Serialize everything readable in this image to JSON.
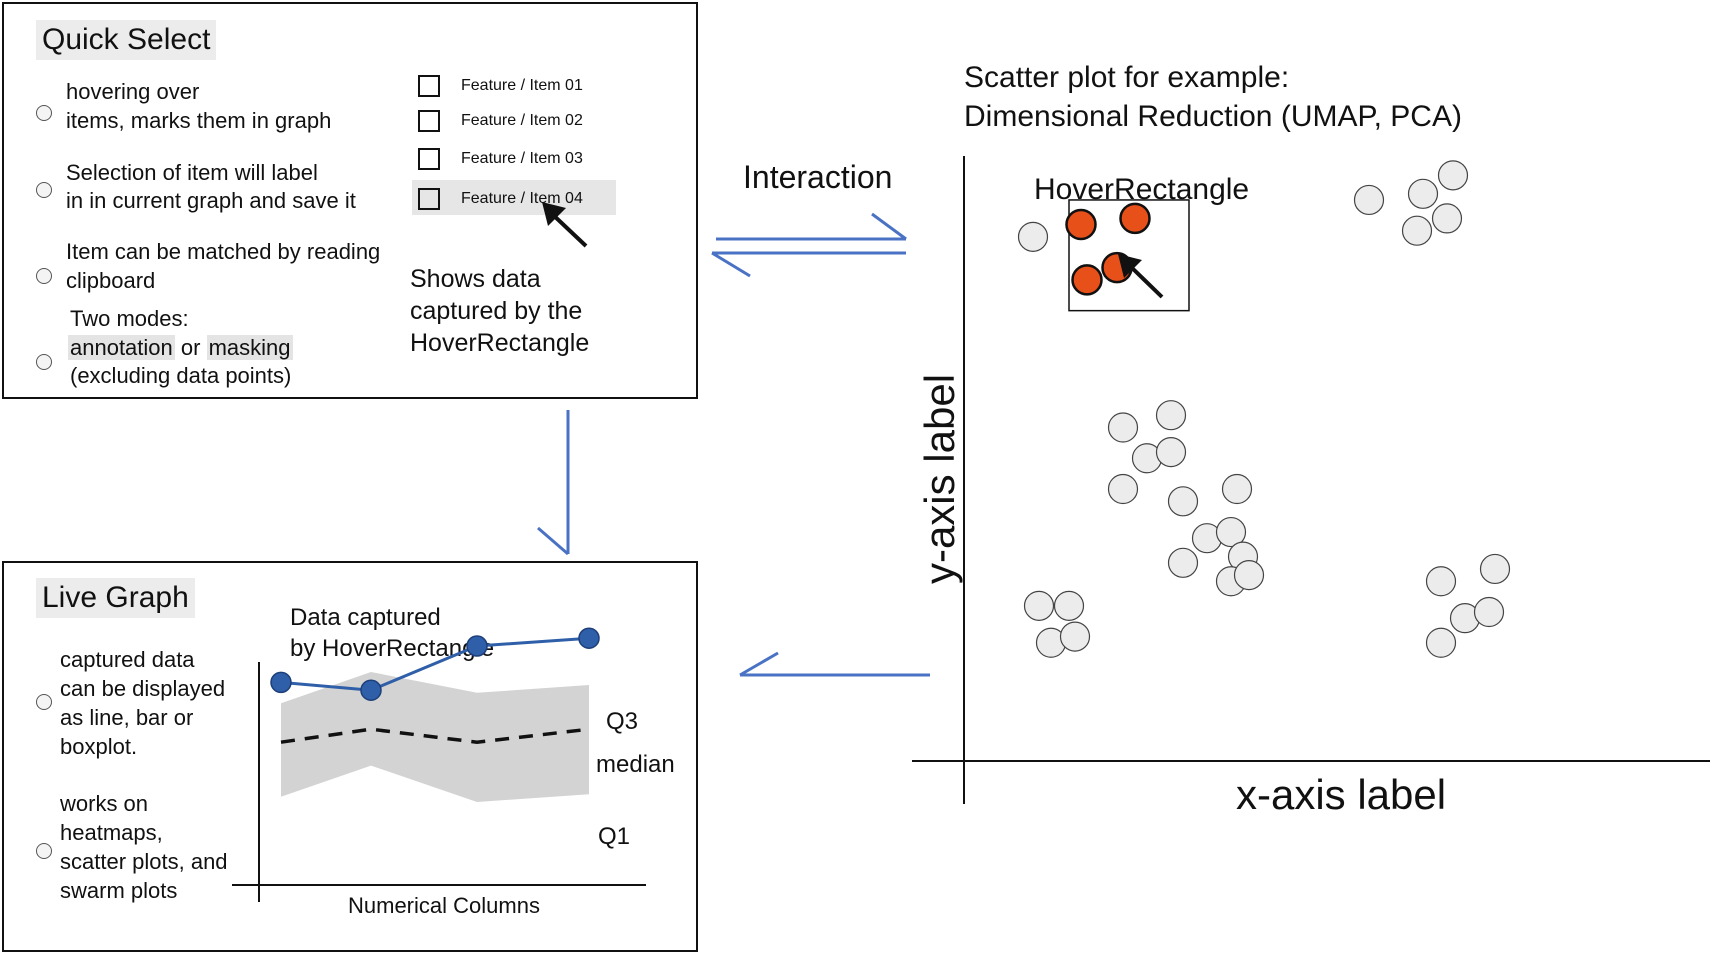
{
  "quick_select": {
    "title": "Quick Select",
    "options": [
      {
        "lines": [
          "hovering over",
          "items, marks them in graph"
        ]
      },
      {
        "lines": [
          "Selection of item will label",
          "in in current graph and save it"
        ]
      },
      {
        "lines": [
          "Item can be matched by reading",
          "clipboard"
        ]
      },
      {
        "line1": "Two modes:",
        "mode_a": "annotation",
        "connector": "or",
        "mode_b": "masking",
        "line3": "(excluding data points)"
      }
    ],
    "items": [
      "Feature / Item 01",
      "Feature / Item 02",
      "Feature / Item 03",
      "Feature / Item 04"
    ],
    "hovered_item_index": 3,
    "shows_note": [
      "Shows data",
      "captured by the",
      "HoverRectangle"
    ]
  },
  "interaction_label": "Interaction",
  "live_graph": {
    "title": "Live Graph",
    "options": [
      {
        "lines": [
          "captured data",
          "can be displayed",
          "as line, bar or",
          "boxplot."
        ]
      },
      {
        "lines": [
          "works on",
          "heatmaps,",
          "scatter plots, and",
          "swarm plots"
        ]
      }
    ]
  },
  "chart_data": [
    {
      "type": "line",
      "title": "Data captured\nby HoverRectangle",
      "title_lines": [
        "Data captured",
        "by HoverRectangle"
      ],
      "xlabel": "Numerical Columns",
      "ylabel": "",
      "x": [
        1,
        2,
        3,
        4
      ],
      "ylim": [
        0,
        10
      ],
      "series": [
        {
          "values": [
            7.6,
            7.3,
            9.0,
            9.3
          ],
          "style": "solid-with-markers",
          "color": "#2f5fa8"
        }
      ],
      "band": {
        "q3": [
          6.8,
          8.0,
          7.2,
          7.5
        ],
        "median": [
          5.3,
          5.8,
          5.3,
          5.8
        ],
        "q1": [
          3.2,
          4.4,
          3.0,
          3.3
        ],
        "color": "#d3d3d3"
      },
      "band_labels": {
        "q3": "Q3",
        "median": "median",
        "q1": "Q1"
      }
    },
    {
      "type": "scatter",
      "title": "Scatter plot for example:\nDimensional Reduction (UMAP, PCA)",
      "title_lines": [
        "Scatter plot for example:",
        "Dimensional Reduction (UMAP, PCA)"
      ],
      "xlabel": "x-axis label",
      "ylabel": "y-axis label",
      "xlim": [
        0,
        100
      ],
      "ylim": [
        0,
        100
      ],
      "hover_rectangle_label": "HoverRectangle",
      "hover_rectangle": {
        "x": [
          14,
          34
        ],
        "y": [
          69,
          87
        ]
      },
      "colors": {
        "selected": "#e8501a",
        "unselected": "#ececec"
      },
      "points": [
        {
          "x": 8,
          "y": 81,
          "selected": false
        },
        {
          "x": 16,
          "y": 83,
          "selected": true
        },
        {
          "x": 25,
          "y": 84,
          "selected": true
        },
        {
          "x": 22,
          "y": 76,
          "selected": true
        },
        {
          "x": 17,
          "y": 74,
          "selected": true
        },
        {
          "x": 64,
          "y": 87,
          "selected": false
        },
        {
          "x": 73,
          "y": 88,
          "selected": false
        },
        {
          "x": 78,
          "y": 91,
          "selected": false
        },
        {
          "x": 72,
          "y": 82,
          "selected": false
        },
        {
          "x": 77,
          "y": 84,
          "selected": false
        },
        {
          "x": 23,
          "y": 50,
          "selected": false
        },
        {
          "x": 31,
          "y": 52,
          "selected": false
        },
        {
          "x": 27,
          "y": 45,
          "selected": false
        },
        {
          "x": 31,
          "y": 46,
          "selected": false
        },
        {
          "x": 23,
          "y": 40,
          "selected": false
        },
        {
          "x": 33,
          "y": 38,
          "selected": false
        },
        {
          "x": 42,
          "y": 40,
          "selected": false
        },
        {
          "x": 37,
          "y": 32,
          "selected": false
        },
        {
          "x": 41,
          "y": 33,
          "selected": false
        },
        {
          "x": 33,
          "y": 28,
          "selected": false
        },
        {
          "x": 43,
          "y": 29,
          "selected": false
        },
        {
          "x": 41,
          "y": 25,
          "selected": false
        },
        {
          "x": 44,
          "y": 26,
          "selected": false
        },
        {
          "x": 9,
          "y": 21,
          "selected": false
        },
        {
          "x": 14,
          "y": 21,
          "selected": false
        },
        {
          "x": 11,
          "y": 15,
          "selected": false
        },
        {
          "x": 15,
          "y": 16,
          "selected": false
        },
        {
          "x": 76,
          "y": 25,
          "selected": false
        },
        {
          "x": 85,
          "y": 27,
          "selected": false
        },
        {
          "x": 80,
          "y": 19,
          "selected": false
        },
        {
          "x": 84,
          "y": 20,
          "selected": false
        },
        {
          "x": 76,
          "y": 15,
          "selected": false
        }
      ]
    }
  ]
}
